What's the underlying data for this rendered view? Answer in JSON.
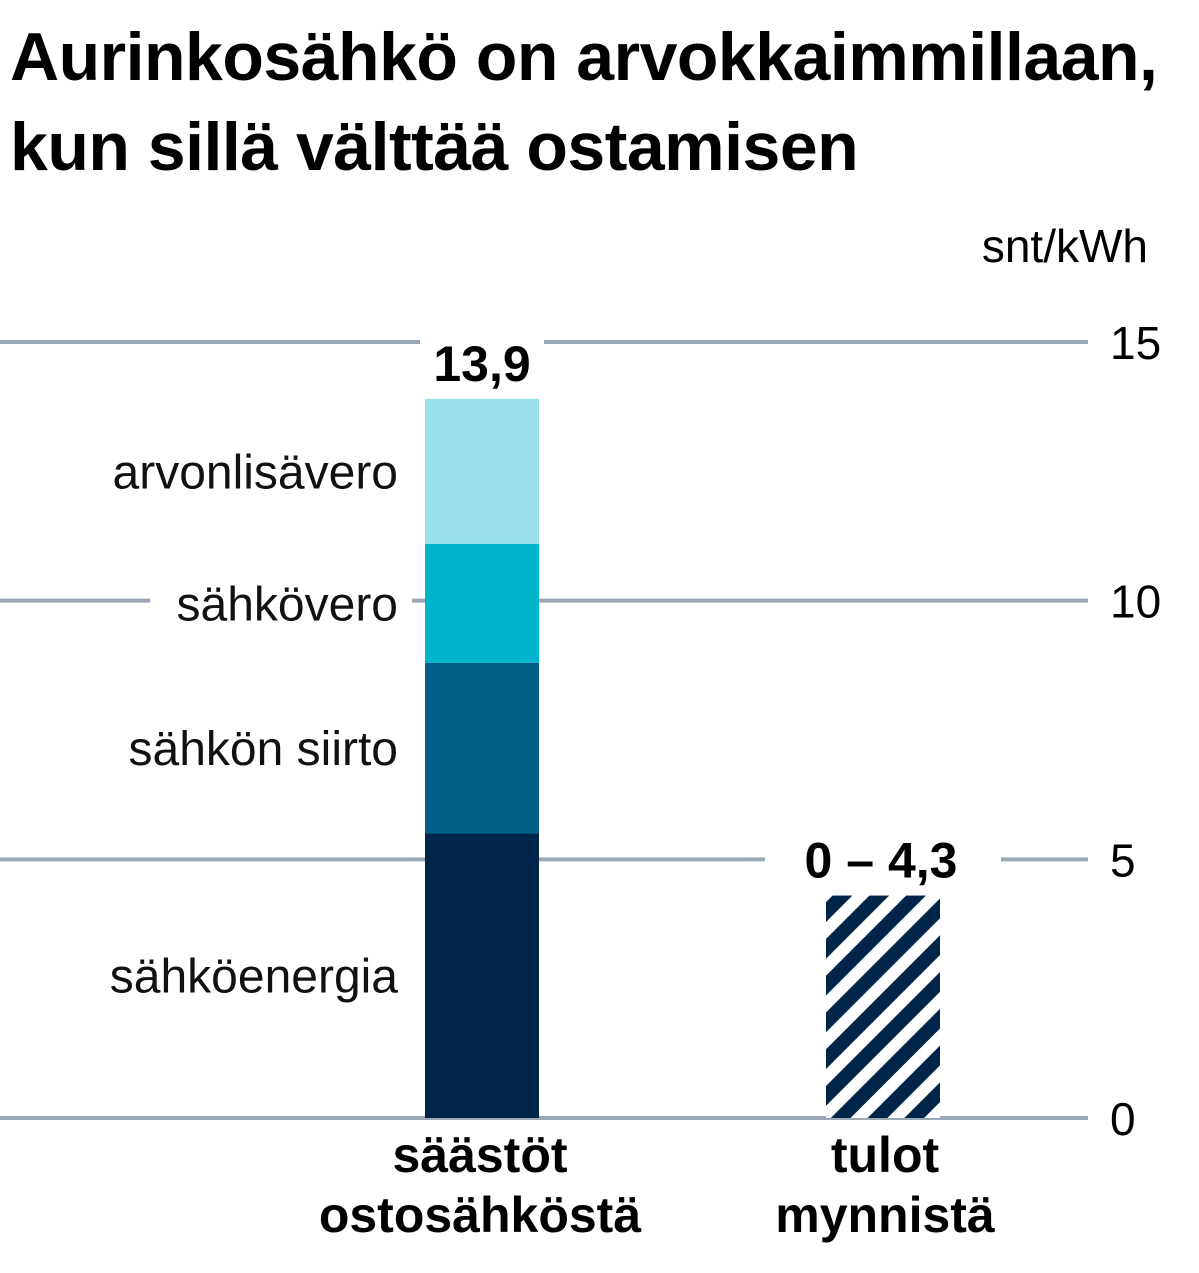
{
  "chart_data": {
    "type": "bar",
    "title": [
      "Aurinkosähkö on arvokkaimmillaan,",
      "kun sillä välttää ostamisen"
    ],
    "unit": "snt/kWh",
    "ylim": [
      0,
      15
    ],
    "yticks": [
      0,
      5,
      10,
      15
    ],
    "ytick_labels": [
      "0",
      "5",
      "10",
      "15"
    ],
    "grid": "horizontal",
    "categories": [
      [
        "säästöt",
        "ostosähköstä"
      ],
      [
        "tulot",
        "mynnistä"
      ]
    ],
    "stacked_bar": {
      "category_index": 0,
      "total_label": "13,9",
      "segments": [
        {
          "name": "sähköenergia",
          "value": 5.5,
          "color": "#002548"
        },
        {
          "name": "sähkön siirto",
          "value": 3.3,
          "color": "#005e89"
        },
        {
          "name": "sähkövero",
          "value": 2.3,
          "color": "#00b4cc"
        },
        {
          "name": "arvonlisävero",
          "value": 2.8,
          "color": "#97e0ec"
        }
      ]
    },
    "range_bar": {
      "category_index": 1,
      "range": [
        0,
        4.3
      ],
      "label": "0 – 4,3",
      "pattern": "diagonal-stripes",
      "color": "#002548"
    }
  },
  "colors": {
    "grid": "#9aa7b4",
    "text": "#000000"
  }
}
